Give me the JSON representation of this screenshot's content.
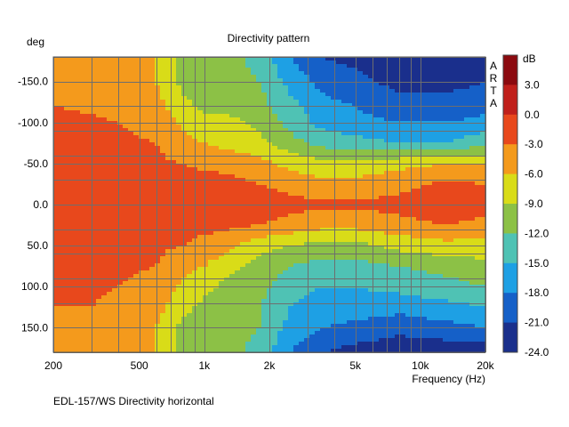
{
  "chart_data": {
    "type": "heatmap",
    "title": "Directivity pattern",
    "ylabel": "deg",
    "xlabel": "Frequency (Hz)",
    "watermark": "ARTA",
    "caption": "EDL-157/WS Directivity horizontal",
    "x_scale": "log",
    "xlim": [
      200,
      20000
    ],
    "ylim": [
      -180,
      180
    ],
    "y_inverted": true,
    "x_ticks": [
      200,
      500,
      1000,
      2000,
      5000,
      10000,
      20000
    ],
    "x_tick_labels": [
      "200",
      "500",
      "1k",
      "2k",
      "5k",
      "10k",
      "20k"
    ],
    "y_ticks": [
      -150,
      -100,
      -50,
      0,
      50,
      100,
      150
    ],
    "y_tick_labels": [
      "-150.0",
      "-100.0",
      "-50.0",
      "0.0",
      "50.0",
      "100.0",
      "150.0"
    ],
    "grid": true,
    "colorbar": {
      "unit": "dB",
      "tick_labels": [
        "3.0",
        "0.0",
        "-3.0",
        "-6.0",
        "-9.0",
        "-12.0",
        "-15.0",
        "-18.0",
        "-21.0",
        "-24.0"
      ],
      "levels": [
        {
          "min": 3,
          "max": 6,
          "color": "#8b0a0f"
        },
        {
          "min": 0,
          "max": 3,
          "color": "#c0201b"
        },
        {
          "min": -3,
          "max": 0,
          "color": "#e8481c"
        },
        {
          "min": -6,
          "max": -3,
          "color": "#f49a1c"
        },
        {
          "min": -9,
          "max": -6,
          "color": "#d9dc18"
        },
        {
          "min": -12,
          "max": -9,
          "color": "#8cc146"
        },
        {
          "min": -15,
          "max": -12,
          "color": "#4fc2b4"
        },
        {
          "min": -18,
          "max": -15,
          "color": "#1ea0e4"
        },
        {
          "min": -21,
          "max": -18,
          "color": "#1560c8"
        },
        {
          "min": -24,
          "max": -21,
          "color": "#1a2f8c"
        }
      ]
    },
    "contour_samples": [
      {
        "deg": -180,
        "db": [
          -3,
          -4,
          -4.5,
          -6,
          -10,
          -11,
          -11,
          -13,
          -18,
          -21,
          -22,
          -23,
          -23,
          -23
        ]
      },
      {
        "deg": -150,
        "db": [
          -3,
          -3.5,
          -4.5,
          -6,
          -10,
          -11,
          -11,
          -12,
          -16,
          -19,
          -20,
          -22,
          -22,
          -21
        ]
      },
      {
        "deg": -120,
        "db": [
          -3,
          -3.5,
          -4,
          -5,
          -8,
          -10,
          -10,
          -11,
          -14,
          -17,
          -18,
          -20,
          -20,
          -19
        ]
      },
      {
        "deg": -100,
        "db": [
          -2,
          -2.5,
          -3,
          -4,
          -6.5,
          -8,
          -8,
          -10,
          -13,
          -16,
          -17,
          -18,
          -18,
          -17
        ]
      },
      {
        "deg": -75,
        "db": [
          -1.5,
          -2,
          -2.5,
          -3,
          -5,
          -6,
          -7,
          -8,
          -11,
          -13,
          -14,
          -15,
          -15,
          -13
        ]
      },
      {
        "deg": -50,
        "db": [
          -1.5,
          -1.5,
          -2,
          -2.5,
          -3,
          -3.5,
          -4,
          -5,
          -7,
          -8,
          -8,
          -7,
          -6,
          -6
        ]
      },
      {
        "deg": -25,
        "db": [
          -1,
          -1,
          -1.5,
          -1.5,
          -2,
          -2,
          -2,
          -3,
          -4,
          -5,
          -5,
          -4,
          -2.5,
          -3
        ]
      },
      {
        "deg": 0,
        "db": [
          -1,
          -1,
          -1,
          -1,
          -1,
          -1.5,
          -1.5,
          -1.5,
          -2,
          -2.5,
          -2.5,
          -2,
          -1,
          -1.5
        ]
      },
      {
        "deg": 25,
        "db": [
          -1,
          -1,
          -1.5,
          -1.5,
          -2,
          -2,
          -2.5,
          -3,
          -4,
          -5,
          -5,
          -4,
          -3,
          -4
        ]
      },
      {
        "deg": 50,
        "db": [
          -1.5,
          -1.5,
          -2,
          -2.5,
          -3,
          -4,
          -5,
          -8,
          -9,
          -10,
          -10,
          -8,
          -7,
          -7
        ]
      },
      {
        "deg": 75,
        "db": [
          -1.5,
          -2,
          -2.5,
          -3,
          -5,
          -6,
          -8,
          -10,
          -12,
          -13,
          -13,
          -12,
          -11,
          -10
        ]
      },
      {
        "deg": 100,
        "db": [
          -2,
          -2.5,
          -3,
          -4,
          -6.5,
          -8,
          -10,
          -11,
          -14,
          -15,
          -15,
          -14,
          -13,
          -12
        ]
      },
      {
        "deg": 125,
        "db": [
          -3,
          -3,
          -4,
          -5,
          -8,
          -10,
          -11,
          -12,
          -15,
          -16,
          -16,
          -17,
          -16,
          -15
        ]
      },
      {
        "deg": 150,
        "db": [
          -3,
          -3.5,
          -4.5,
          -6,
          -10,
          -11,
          -11,
          -12,
          -16,
          -18,
          -19,
          -20,
          -19,
          -18
        ]
      },
      {
        "deg": 180,
        "db": [
          -3,
          -4,
          -4.5,
          -6,
          -10,
          -11,
          -11,
          -13,
          -18,
          -21,
          -22,
          -23,
          -23,
          -23
        ]
      }
    ],
    "contour_sample_freqs": [
      200,
      300,
      400,
      600,
      800,
      1000,
      1300,
      1800,
      2500,
      3500,
      5000,
      8000,
      13000,
      20000
    ]
  }
}
